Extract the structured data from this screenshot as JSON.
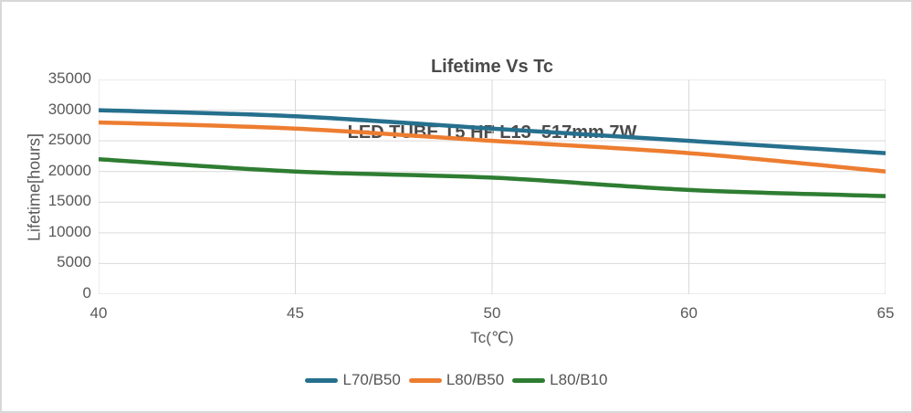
{
  "title": {
    "line1": "Lifetime Vs Tc",
    "line2": "LED TUBE T5 HF L13  517mm 7W"
  },
  "chart_data": {
    "type": "line",
    "title": "Lifetime Vs Tc",
    "subtitle": "LED TUBE T5 HF L13  517mm 7W",
    "categories": [
      "40",
      "45",
      "50",
      "60",
      "65"
    ],
    "xlabel": "Tc(℃)",
    "ylabel": "Lifetime[hours]",
    "ylim": [
      0,
      35000
    ],
    "ytick_step": 5000,
    "yticks": [
      0,
      5000,
      10000,
      15000,
      20000,
      25000,
      30000,
      35000
    ],
    "grid": true,
    "smooth_lines": true,
    "legend_position": "bottom",
    "series": [
      {
        "name": "L70/B50",
        "color": "#26708E",
        "values": [
          30000,
          29000,
          27000,
          25000,
          23000
        ]
      },
      {
        "name": "L80/B50",
        "color": "#ED7D31",
        "values": [
          28000,
          27000,
          25000,
          23000,
          20000
        ]
      },
      {
        "name": "L80/B10",
        "color": "#2E7D32",
        "values": [
          22000,
          20000,
          19000,
          17000,
          16000
        ]
      }
    ],
    "colors": {
      "gridline": "#D9D9D9",
      "tick_text": "#595959",
      "title_text": "#4A4A4A",
      "frame_border": "#D8D8D8",
      "background": "#FFFFFF"
    }
  }
}
